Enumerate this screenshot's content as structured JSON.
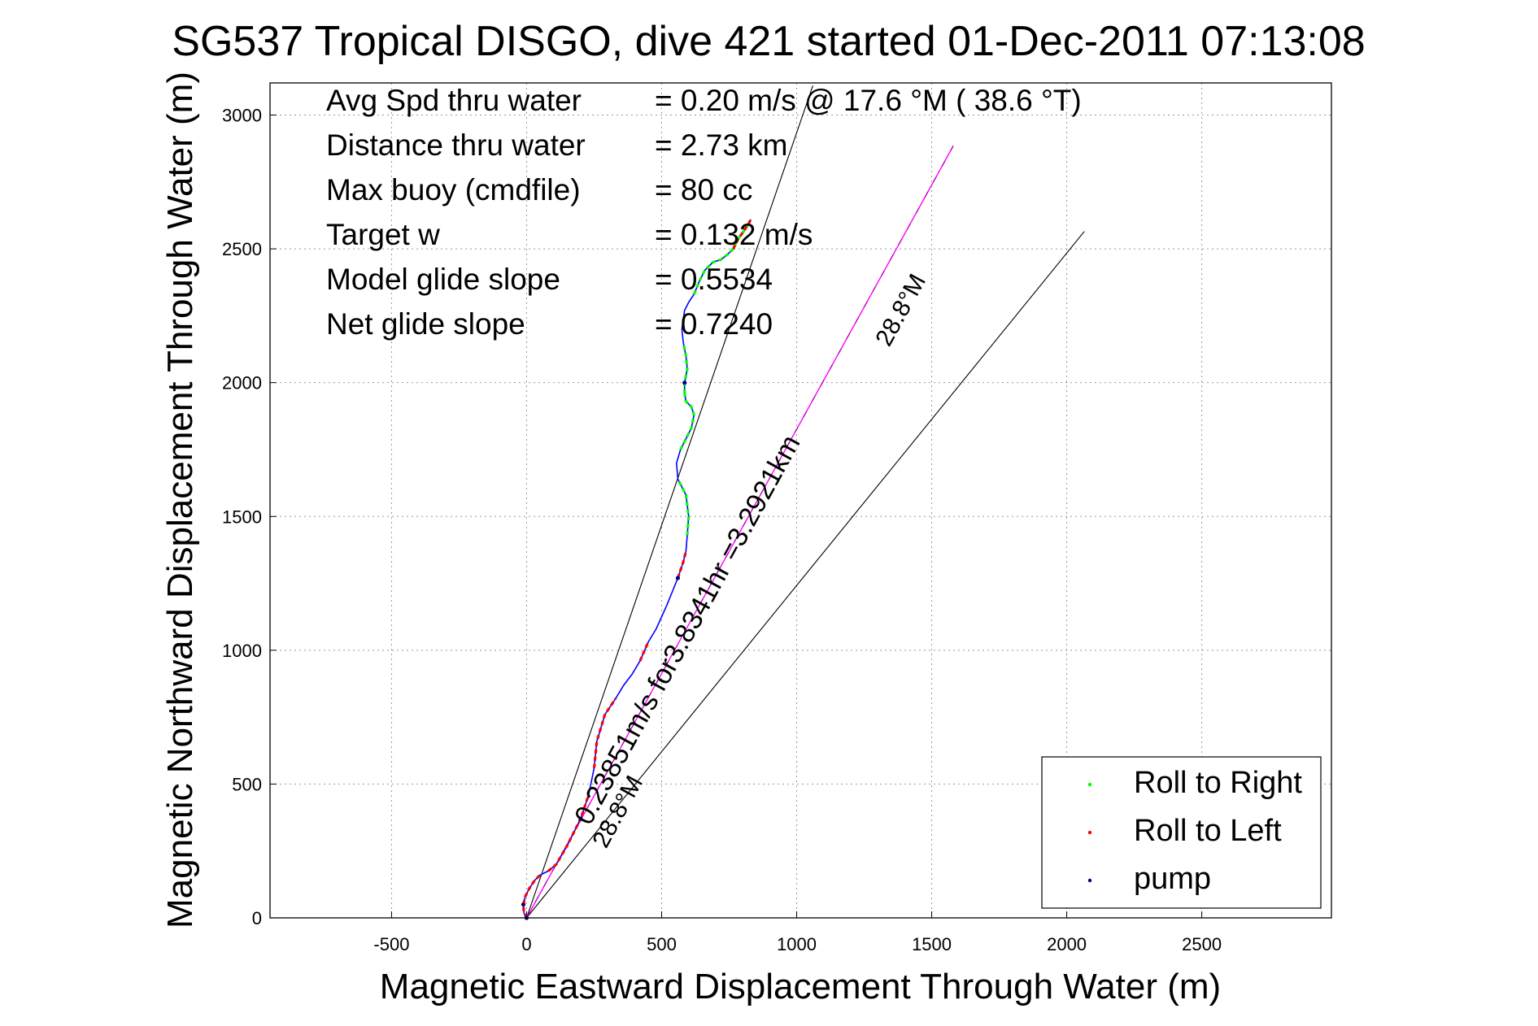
{
  "chart_data": {
    "type": "line",
    "title": "SG537 Tropical DISGO, dive 421 started 01-Dec-2011 07:13:08",
    "xlabel": "Magnetic Eastward Displacement Through Water (m)",
    "ylabel": "Magnetic Northward Displacement Through Water (m)",
    "xlim": [
      -950,
      2980
    ],
    "ylim": [
      0,
      3120
    ],
    "xticks": [
      -500,
      0,
      500,
      1000,
      1500,
      2000,
      2500
    ],
    "yticks": [
      0,
      500,
      1000,
      1500,
      2000,
      2500,
      3000
    ],
    "grid": true,
    "legend_position": "bottom-right",
    "stats": [
      {
        "label": "Avg Spd thru water",
        "value": "=  0.20 m/s @  17.6 °M ( 38.6 °T)"
      },
      {
        "label": "Distance thru water",
        "value": "=  2.73 km"
      },
      {
        "label": "Max buoy (cmdfile)",
        "value": "= 80 cc"
      },
      {
        "label": "Target w",
        "value": "= 0.132 m/s"
      },
      {
        "label": "Model glide slope",
        "value": "= 0.5534"
      },
      {
        "label": "Net glide slope",
        "value": "= 0.7240"
      }
    ],
    "annotations": {
      "current_label": "0.23851m/s for3.8341hr =3.2921km",
      "heading_label_low": "28.8°M",
      "heading_label_high": "28.8°M"
    },
    "reference_lines": [
      {
        "from": [
          0,
          0
        ],
        "to": [
          1060,
          3110
        ]
      },
      {
        "from": [
          0,
          0
        ],
        "to": [
          2065,
          2565
        ]
      }
    ],
    "current_line": {
      "from": [
        0,
        0
      ],
      "to": [
        1580,
        2885
      ],
      "color": "#ff00ff"
    },
    "track": {
      "color": "#0000ff",
      "x": [
        0,
        -10,
        -12,
        -5,
        10,
        30,
        50,
        80,
        110,
        150,
        200,
        230,
        250,
        260,
        290,
        330,
        360,
        390,
        420,
        450,
        480,
        520,
        560,
        580,
        590,
        595,
        600,
        590,
        560,
        555,
        570,
        590,
        610,
        620,
        610,
        590,
        585,
        585,
        595,
        590,
        580,
        575,
        585,
        600,
        620,
        640,
        660,
        690,
        720,
        745,
        765,
        785,
        800,
        820,
        830
      ],
      "y": [
        0,
        20,
        50,
        80,
        110,
        140,
        160,
        175,
        200,
        270,
        370,
        460,
        560,
        660,
        760,
        820,
        870,
        910,
        960,
        1030,
        1080,
        1170,
        1270,
        1330,
        1370,
        1430,
        1500,
        1580,
        1640,
        1700,
        1750,
        1790,
        1830,
        1880,
        1910,
        1930,
        1960,
        2000,
        2050,
        2100,
        2150,
        2200,
        2270,
        2300,
        2330,
        2380,
        2420,
        2450,
        2460,
        2480,
        2500,
        2540,
        2560,
        2590,
        2610
      ]
    },
    "legend": [
      {
        "label": "Roll to Right",
        "color": "#00ff00"
      },
      {
        "label": "Roll to Left",
        "color": "#ff0000"
      },
      {
        "label": "pump",
        "color": "#000080"
      }
    ],
    "roll_right_segments": [
      [
        44,
        53
      ],
      [
        30,
        36
      ],
      [
        36,
        40
      ],
      [
        25,
        28
      ]
    ],
    "roll_left_segments": [
      [
        0,
        6
      ],
      [
        7,
        11
      ],
      [
        12,
        15
      ],
      [
        18,
        19
      ],
      [
        22,
        24
      ],
      [
        50,
        54
      ]
    ],
    "pump_indices": [
      0,
      2,
      10,
      22,
      37
    ]
  }
}
